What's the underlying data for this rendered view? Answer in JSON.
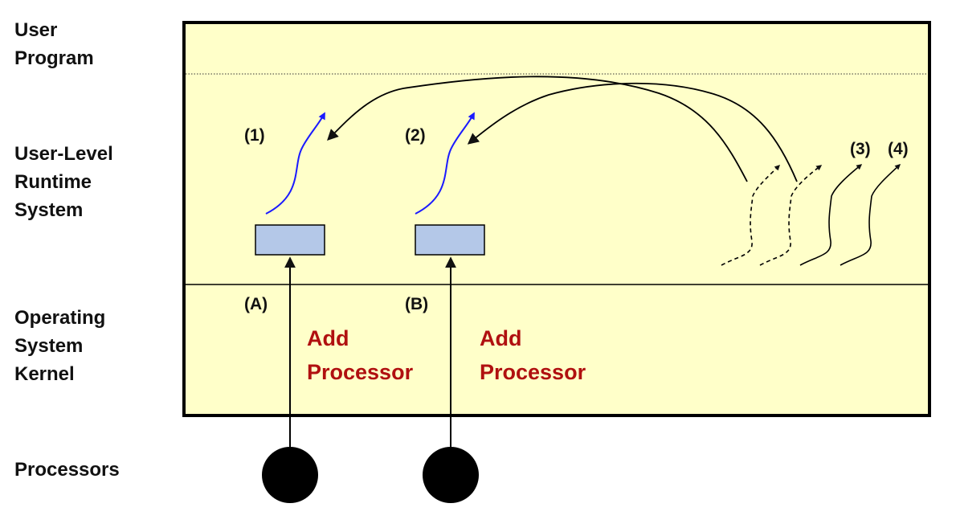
{
  "layers": {
    "user_program": "User\nProgram",
    "runtime": "User-Level\nRuntime\nSystem",
    "kernel": "Operating\nSystem\nKernel",
    "processors": "Processors"
  },
  "threads": {
    "t1": "(1)",
    "t2": "(2)",
    "t3": "(3)",
    "t4": "(4)"
  },
  "activations": {
    "a": "(A)",
    "b": "(B)"
  },
  "kernel_messages": {
    "a_line1": "Add",
    "a_line2": "Processor",
    "b_line1": "Add",
    "b_line2": "Processor"
  },
  "colors": {
    "space_fill": "#ffffc9",
    "context_box": "#b4c8e8",
    "thread_running": "#1a1aff",
    "kernel_text": "#b01010",
    "processor": "#000000"
  }
}
